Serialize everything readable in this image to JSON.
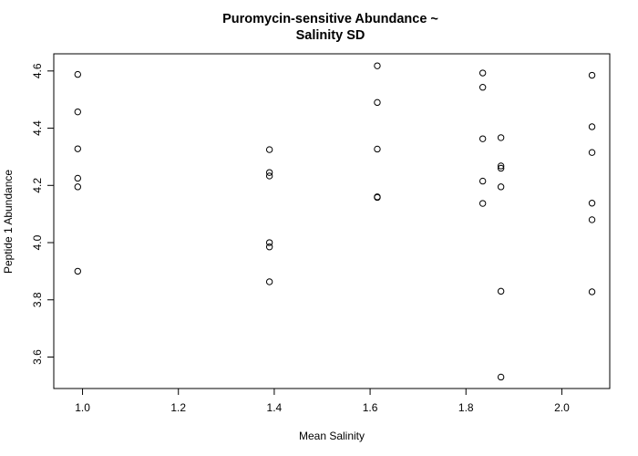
{
  "chart_data": {
    "type": "scatter",
    "title_line1": "Puromycin-sensitive Abundance ~",
    "title_line2": "Salinity SD",
    "xlabel": "Mean Salinity",
    "ylabel": "Peptide 1 Abundance",
    "xlim": [
      0.94,
      2.1
    ],
    "ylim": [
      3.49,
      4.66
    ],
    "xticks": [
      "1.0",
      "1.2",
      "1.4",
      "1.6",
      "1.8",
      "2.0"
    ],
    "yticks": [
      "3.6",
      "3.8",
      "4.0",
      "4.2",
      "4.4",
      "4.6"
    ],
    "points": [
      {
        "x": 0.99,
        "y": 4.588
      },
      {
        "x": 0.99,
        "y": 4.457
      },
      {
        "x": 0.99,
        "y": 4.328
      },
      {
        "x": 0.99,
        "y": 4.225
      },
      {
        "x": 0.99,
        "y": 4.195
      },
      {
        "x": 0.99,
        "y": 3.9
      },
      {
        "x": 1.39,
        "y": 4.325
      },
      {
        "x": 1.39,
        "y": 4.245
      },
      {
        "x": 1.39,
        "y": 4.233
      },
      {
        "x": 1.39,
        "y": 4.0
      },
      {
        "x": 1.39,
        "y": 3.985
      },
      {
        "x": 1.39,
        "y": 3.863
      },
      {
        "x": 1.615,
        "y": 4.618
      },
      {
        "x": 1.615,
        "y": 4.49
      },
      {
        "x": 1.615,
        "y": 4.327
      },
      {
        "x": 1.615,
        "y": 4.16
      },
      {
        "x": 1.615,
        "y": 4.158
      },
      {
        "x": 1.835,
        "y": 4.593
      },
      {
        "x": 1.835,
        "y": 4.543
      },
      {
        "x": 1.835,
        "y": 4.363
      },
      {
        "x": 1.835,
        "y": 4.215
      },
      {
        "x": 1.835,
        "y": 4.137
      },
      {
        "x": 1.873,
        "y": 4.367
      },
      {
        "x": 1.873,
        "y": 4.268
      },
      {
        "x": 1.873,
        "y": 4.26
      },
      {
        "x": 1.873,
        "y": 4.195
      },
      {
        "x": 1.873,
        "y": 3.83
      },
      {
        "x": 1.873,
        "y": 3.53
      },
      {
        "x": 2.063,
        "y": 4.585
      },
      {
        "x": 2.063,
        "y": 4.405
      },
      {
        "x": 2.063,
        "y": 4.315
      },
      {
        "x": 2.063,
        "y": 4.138
      },
      {
        "x": 2.063,
        "y": 4.08
      },
      {
        "x": 2.063,
        "y": 3.828
      }
    ]
  }
}
